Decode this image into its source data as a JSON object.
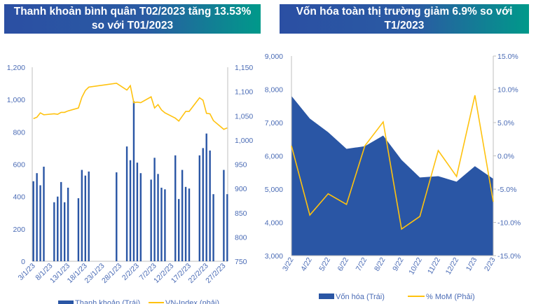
{
  "colors": {
    "bar": "#2a56a5",
    "line": "#ffc20e",
    "axis": "#bfbfbf",
    "text": "#4a6bb5"
  },
  "chart_data": [
    {
      "type": "bar+line",
      "title": "Thanh khoản bình quân T02/2023 tăng 13.53% so với T01/2023",
      "x_tick_labels": [
        "3/1/23",
        "8/1/23",
        "13/1/23",
        "18/1/23",
        "23/1/23",
        "28/1/23",
        "2/2/23",
        "7/2/23",
        "12/2/23",
        "17/2/23",
        "22/2/23",
        "27/2/23"
      ],
      "y_left": {
        "range": [
          0,
          1200
        ],
        "ticks": [
          "0",
          "200",
          "400",
          "600",
          "800",
          "1,000",
          "1,200"
        ]
      },
      "y_right": {
        "range": [
          750,
          1150
        ],
        "ticks": [
          "750",
          "800",
          "850",
          "900",
          "950",
          "1,000",
          "1,050",
          "1,100",
          "1,150"
        ]
      },
      "dates": [
        "3/1",
        "4/1",
        "5/1",
        "6/1",
        "9/1",
        "10/1",
        "11/1",
        "12/1",
        "13/1",
        "16/1",
        "17/1",
        "18/1",
        "19/1",
        "27/1",
        "30/1",
        "31/1",
        "1/2",
        "2/2",
        "3/2",
        "6/2",
        "7/2",
        "8/2",
        "9/2",
        "10/2",
        "13/2",
        "14/2",
        "15/2",
        "16/2",
        "17/2",
        "20/2",
        "21/2",
        "22/2",
        "23/2",
        "24/2",
        "27/2",
        "28/2"
      ],
      "series": [
        {
          "name": "Thanh khoản (Trái)",
          "type": "bar",
          "axis": "left",
          "values": [
            495,
            545,
            470,
            585,
            365,
            400,
            490,
            365,
            455,
            390,
            565,
            530,
            555,
            550,
            710,
            625,
            990,
            610,
            545,
            505,
            640,
            540,
            455,
            445,
            655,
            385,
            565,
            460,
            450,
            655,
            700,
            790,
            685,
            415,
            565,
            415
          ]
        },
        {
          "name": "VN-Index (phải)",
          "type": "line",
          "axis": "right",
          "values": [
            1044,
            1047,
            1056,
            1052,
            1054,
            1053,
            1057,
            1057,
            1060,
            1066,
            1088,
            1102,
            1109,
            1117,
            1103,
            1112,
            1077,
            1078,
            1077,
            1089,
            1066,
            1073,
            1062,
            1056,
            1045,
            1039,
            1049,
            1059,
            1059,
            1087,
            1082,
            1055,
            1054,
            1040,
            1022,
            1025
          ]
        }
      ],
      "legend": "bottom"
    },
    {
      "type": "area+line",
      "title": "Vốn hóa toàn thị trường giảm 6.9% so với T1/2023",
      "categories": [
        "3/22",
        "4/22",
        "5/22",
        "6/22",
        "7/22",
        "8/22",
        "9/22",
        "10/22",
        "11/22",
        "12/22",
        "1/23",
        "2/23"
      ],
      "y_left": {
        "range": [
          3000,
          9000
        ],
        "ticks": [
          "3,000",
          "4,000",
          "5,000",
          "6,000",
          "7,000",
          "8,000",
          "9,000"
        ]
      },
      "y_right": {
        "range": [
          -15,
          15
        ],
        "ticks": [
          "-15.0%",
          "-10.0%",
          "-5.0%",
          "0.0%",
          "5.0%",
          "10.0%",
          "15.0%"
        ]
      },
      "series": [
        {
          "name": "Vốn hóa (Trái)",
          "type": "area",
          "axis": "left",
          "values": [
            7800,
            7120,
            6710,
            6210,
            6290,
            6610,
            5880,
            5350,
            5390,
            5225,
            5690,
            5310
          ]
        },
        {
          "name": "% MoM (Phải)",
          "type": "line",
          "axis": "right",
          "values": [
            1.5,
            -8.9,
            -5.7,
            -7.3,
            1.5,
            5.1,
            -11.0,
            -9.1,
            0.8,
            -3.1,
            9.1,
            -6.9
          ]
        }
      ],
      "legend": "bottom"
    }
  ]
}
